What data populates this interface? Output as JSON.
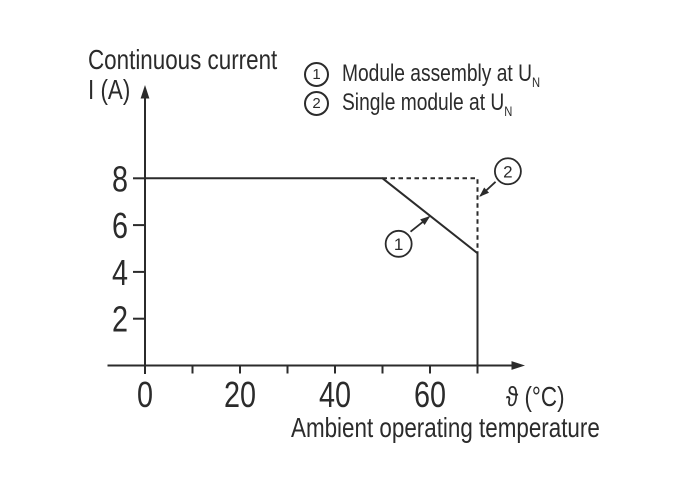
{
  "labels": {
    "y_title_line1": "Continuous current",
    "y_title_line2": "I (A)",
    "x_axis_symbol": "ϑ (°C)",
    "x_axis_caption": "Ambient operating temperature"
  },
  "legend": {
    "items": [
      {
        "num": "1",
        "text": "Module assembly at U",
        "sub": "N"
      },
      {
        "num": "2",
        "text": "Single module at U",
        "sub": "N"
      }
    ]
  },
  "colors": {
    "ink": "#2b2b2b",
    "background": "#ffffff"
  },
  "chart_data": {
    "type": "line",
    "title": "",
    "xlabel": "ϑ (°C)",
    "xlabel_caption": "Ambient operating temperature",
    "ylabel": "Continuous current I (A)",
    "xlim": [
      0,
      80
    ],
    "ylim": [
      0,
      12
    ],
    "grid": false,
    "legend_position": "top-right",
    "x_ticks": [
      0,
      10,
      20,
      30,
      40,
      50,
      60,
      70
    ],
    "x_tick_labels": [
      0,
      20,
      40,
      60
    ],
    "y_ticks": [
      2,
      4,
      6,
      8
    ],
    "series": [
      {
        "name": "Module assembly at UN",
        "marker_label": "1",
        "style": "solid",
        "points": [
          [
            0,
            8
          ],
          [
            50,
            8
          ],
          [
            70,
            4.8
          ],
          [
            70,
            0
          ]
        ]
      },
      {
        "name": "Single module at UN",
        "marker_label": "2",
        "style": "dashed",
        "points": [
          [
            50,
            8
          ],
          [
            70,
            8
          ],
          [
            70,
            4.8
          ]
        ]
      }
    ],
    "annotations": [
      {
        "label": "1",
        "series": "Module assembly at UN",
        "circle_at": [
          53.4,
          5.2
        ],
        "arrow_from": [
          55.9,
          5.72
        ],
        "arrow_to": [
          59.8,
          6.35
        ]
      },
      {
        "label": "2",
        "series": "Single module at UN",
        "circle_at": [
          76.4,
          8.3
        ],
        "arrow_from": [
          73.8,
          7.85
        ],
        "arrow_to": [
          70.6,
          7.25
        ]
      }
    ]
  }
}
